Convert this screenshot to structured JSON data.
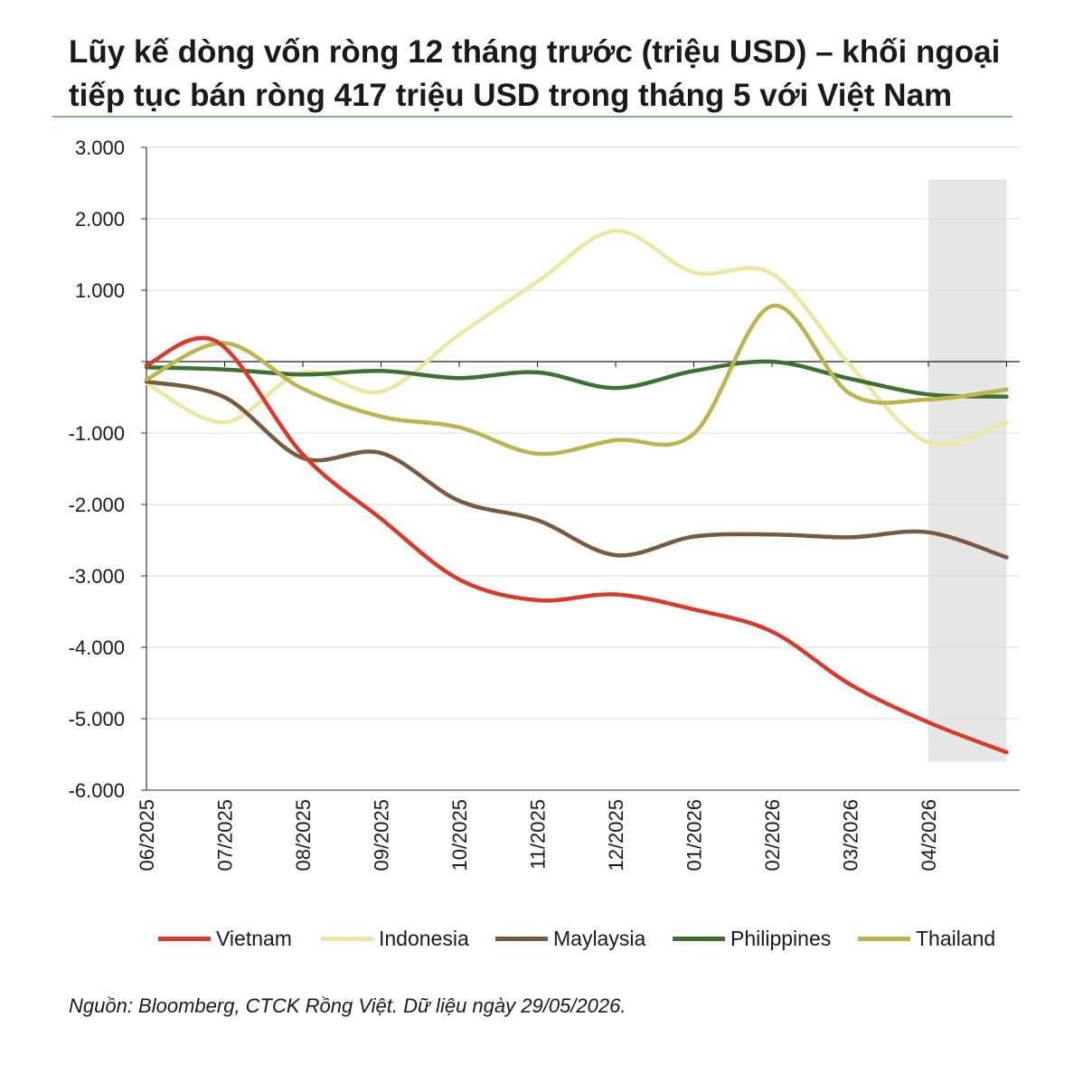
{
  "title": "Lũy kế dòng vốn ròng 12 tháng trước (triệu USD) – khối ngoại tiếp tục bán ròng 417 triệu USD trong tháng 5 với Việt Nam",
  "source": "Nguồn: Bloomberg, CTCK Rồng Việt. Dữ liệu ngày 29/05/2026.",
  "chart_data": {
    "type": "line",
    "title": "Lũy kế dòng vốn ròng 12 tháng trước (triệu USD) – khối ngoại tiếp tục bán ròng 417 triệu USD trong tháng 5 với Việt Nam",
    "xlabel": "",
    "ylabel": "",
    "ylim": [
      -6000,
      3000
    ],
    "yticks": [
      3000,
      2000,
      1000,
      0,
      -1000,
      -2000,
      -3000,
      -4000,
      -5000,
      -6000
    ],
    "ytick_labels": [
      "3.000",
      "2.000",
      "1.000",
      "",
      "-1.000",
      "-2.000",
      "-3.000",
      "-4.000",
      "-5.000",
      "-6.000"
    ],
    "categories": [
      "06/2025",
      "07/2025",
      "08/2025",
      "09/2025",
      "10/2025",
      "11/2025",
      "12/2025",
      "01/2026",
      "02/2026",
      "03/2026",
      "04/2026"
    ],
    "grid": true,
    "legend_position": "bottom",
    "shaded_region": {
      "x_from": 10,
      "x_to": 11,
      "y_from": -5600,
      "y_to": 2550,
      "color": "#e6e6e6"
    },
    "series": [
      {
        "name": "Vietnam",
        "color": "#d63b2c",
        "x": [
          0,
          0.9,
          2,
          3,
          4,
          5,
          6,
          7,
          8,
          9,
          10,
          11
        ],
        "values": [
          -50,
          280,
          -1300,
          -2200,
          -3050,
          -3340,
          -3260,
          -3470,
          -3780,
          -4520,
          -5050,
          -5470
        ]
      },
      {
        "name": "Indonesia",
        "color": "#ece7a2",
        "x": [
          0,
          1,
          2,
          3,
          4,
          5,
          6,
          7,
          8,
          9,
          10,
          11
        ],
        "values": [
          -300,
          -850,
          -150,
          -420,
          380,
          1120,
          1830,
          1250,
          1230,
          -50,
          -1130,
          -850
        ]
      },
      {
        "name": "Maylaysia",
        "color": "#7a5a3f",
        "x": [
          0,
          1,
          2,
          3,
          4,
          5,
          6,
          7,
          8,
          9,
          10,
          11
        ],
        "values": [
          -280,
          -500,
          -1350,
          -1280,
          -1950,
          -2220,
          -2710,
          -2450,
          -2420,
          -2460,
          -2390,
          -2740
        ]
      },
      {
        "name": "Philippines",
        "color": "#3d7032",
        "x": [
          0,
          1,
          2,
          3,
          4,
          5,
          6,
          7,
          8,
          9,
          10,
          11
        ],
        "values": [
          -80,
          -110,
          -180,
          -130,
          -230,
          -150,
          -370,
          -130,
          0,
          -240,
          -460,
          -490
        ]
      },
      {
        "name": "Thailand",
        "color": "#bcb54e",
        "x": [
          0,
          1,
          2,
          3,
          4,
          5,
          6,
          7,
          8,
          9,
          10,
          11
        ],
        "values": [
          -250,
          260,
          -380,
          -770,
          -920,
          -1290,
          -1100,
          -1010,
          780,
          -450,
          -530,
          -390
        ]
      }
    ]
  }
}
